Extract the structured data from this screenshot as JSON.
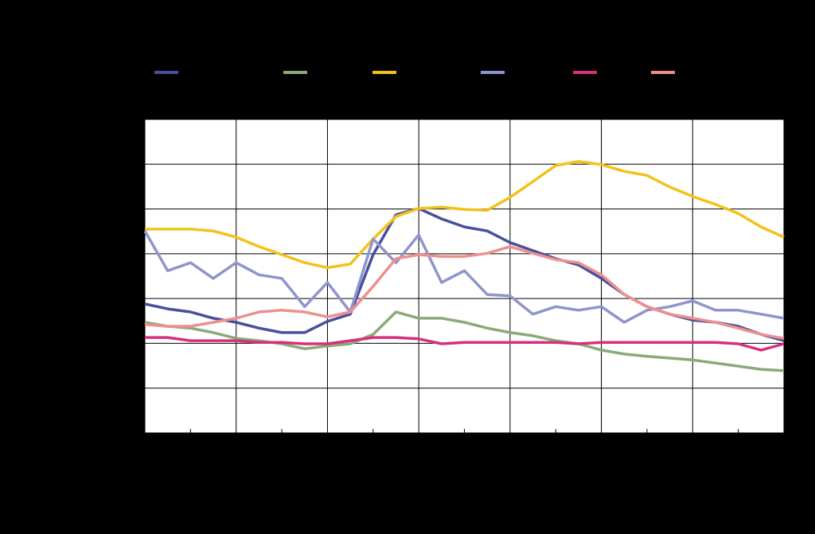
{
  "chart_data": {
    "type": "line",
    "x": [
      0,
      0.5,
      1,
      1.5,
      2,
      2.5,
      3,
      3.5,
      4,
      4.5,
      5,
      5.5,
      6,
      6.5,
      7,
      7.5,
      8,
      8.5,
      9,
      9.5,
      10,
      10.5,
      11,
      11.5,
      12,
      12.5,
      13,
      13.5,
      14
    ],
    "xlim": [
      0,
      14
    ],
    "xticks": [
      0,
      2,
      4,
      6,
      8,
      10,
      12,
      14
    ],
    "xminorticks": [
      1,
      3,
      5,
      7,
      9,
      11,
      13
    ],
    "ylim": [
      0,
      7
    ],
    "yticks": [
      0,
      1,
      2,
      3,
      4,
      5,
      6,
      7
    ],
    "grid": true,
    "series": [
      {
        "color": "#4a4f9c",
        "values": [
          2.88,
          2.77,
          2.7,
          2.56,
          2.47,
          2.34,
          2.24,
          2.24,
          2.49,
          2.65,
          3.98,
          4.87,
          5.01,
          4.78,
          4.6,
          4.51,
          4.25,
          4.07,
          3.89,
          3.75,
          3.45,
          3.09,
          2.82,
          2.65,
          2.52,
          2.47,
          2.38,
          2.2,
          2.06
        ]
      },
      {
        "color": "#8aaa78",
        "values": [
          2.47,
          2.38,
          2.34,
          2.24,
          2.11,
          2.06,
          1.99,
          1.88,
          1.94,
          1.99,
          2.2,
          2.7,
          2.56,
          2.56,
          2.47,
          2.34,
          2.24,
          2.17,
          2.06,
          1.99,
          1.85,
          1.76,
          1.71,
          1.67,
          1.63,
          1.56,
          1.49,
          1.42,
          1.39
        ]
      },
      {
        "color": "#f2c21b",
        "values": [
          4.55,
          4.55,
          4.55,
          4.51,
          4.37,
          4.16,
          3.98,
          3.8,
          3.69,
          3.77,
          4.33,
          4.83,
          5.01,
          5.04,
          4.99,
          4.97,
          5.26,
          5.61,
          5.97,
          6.06,
          5.99,
          5.84,
          5.75,
          5.49,
          5.28,
          5.1,
          4.9,
          4.6,
          4.37
        ]
      },
      {
        "color": "#8f94cc",
        "values": [
          4.51,
          3.62,
          3.8,
          3.45,
          3.8,
          3.53,
          3.45,
          2.82,
          3.36,
          2.7,
          4.33,
          3.8,
          4.42,
          3.36,
          3.62,
          3.09,
          3.06,
          2.65,
          2.82,
          2.74,
          2.82,
          2.47,
          2.74,
          2.82,
          2.95,
          2.74,
          2.74,
          2.65,
          2.56
        ]
      },
      {
        "color": "#d6307a",
        "values": [
          2.13,
          2.13,
          2.06,
          2.06,
          2.06,
          2.02,
          2.02,
          1.99,
          1.99,
          2.06,
          2.13,
          2.13,
          2.1,
          1.99,
          2.02,
          2.02,
          2.02,
          2.02,
          2.02,
          1.99,
          2.02,
          2.02,
          2.02,
          2.02,
          2.02,
          2.02,
          1.99,
          1.85,
          1.99
        ]
      },
      {
        "color": "#ee8f8f",
        "values": [
          2.42,
          2.38,
          2.38,
          2.47,
          2.56,
          2.7,
          2.74,
          2.7,
          2.59,
          2.7,
          3.27,
          3.89,
          3.98,
          3.94,
          3.94,
          4.01,
          4.16,
          4.01,
          3.87,
          3.8,
          3.53,
          3.09,
          2.82,
          2.65,
          2.56,
          2.47,
          2.34,
          2.2,
          2.11
        ]
      }
    ]
  }
}
